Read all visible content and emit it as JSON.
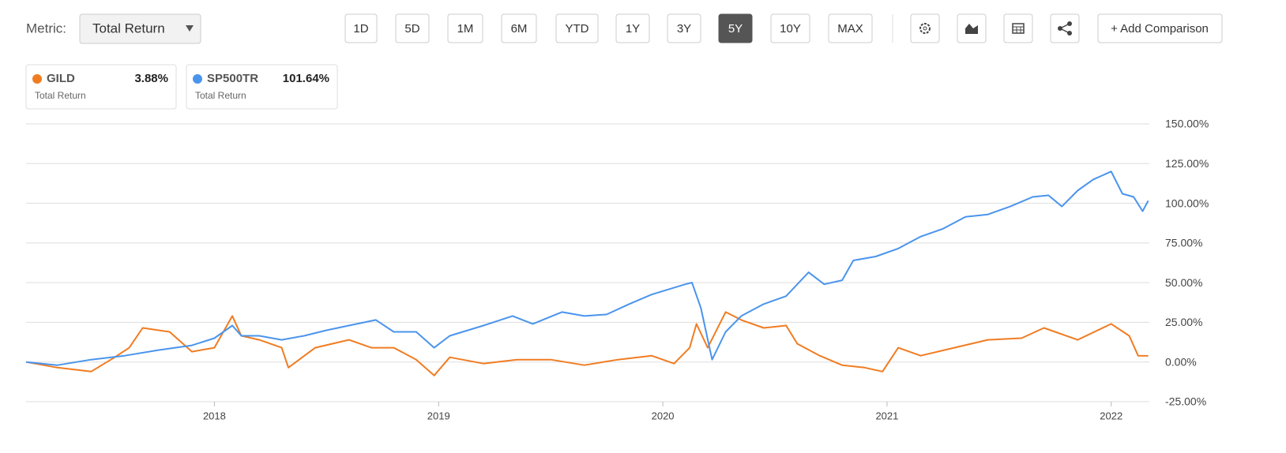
{
  "toolbar": {
    "metric_label": "Metric:",
    "metric_value": "Total Return",
    "ranges": [
      "1D",
      "5D",
      "1M",
      "6M",
      "YTD",
      "1Y",
      "3Y",
      "5Y",
      "10Y",
      "MAX"
    ],
    "active_range": "5Y",
    "add_comparison": "+ Add Comparison"
  },
  "chart_data": {
    "type": "line",
    "xlim": [
      2017.16,
      2022.17
    ],
    "xticks": [
      2018,
      2019,
      2020,
      2021,
      2022
    ],
    "ylim": [
      -25,
      150
    ],
    "yticks": [
      {
        "value": -25,
        "label": "-25.00%"
      },
      {
        "value": 0,
        "label": "0.00%"
      },
      {
        "value": 25,
        "label": "25.00%"
      },
      {
        "value": 50,
        "label": "50.00%"
      },
      {
        "value": 75,
        "label": "75.00%"
      },
      {
        "value": 100,
        "label": "100.00%"
      },
      {
        "value": 125,
        "label": "125.00%"
      },
      {
        "value": 150,
        "label": "150.00%"
      }
    ],
    "grid": true,
    "series": [
      {
        "name": "GILD",
        "color": "#f07c22",
        "subtitle": "Total Return",
        "last": {
          "value": 3.88,
          "label": "3.88%"
        },
        "x": [
          2017.16,
          2017.3,
          2017.45,
          2017.55,
          2017.62,
          2017.68,
          2017.8,
          2017.9,
          2018.0,
          2018.08,
          2018.12,
          2018.2,
          2018.3,
          2018.33,
          2018.45,
          2018.6,
          2018.7,
          2018.8,
          2018.9,
          2018.98,
          2019.05,
          2019.2,
          2019.35,
          2019.5,
          2019.65,
          2019.8,
          2019.95,
          2020.05,
          2020.12,
          2020.15,
          2020.2,
          2020.28,
          2020.35,
          2020.45,
          2020.55,
          2020.6,
          2020.7,
          2020.8,
          2020.9,
          2020.98,
          2021.05,
          2021.15,
          2021.3,
          2021.45,
          2021.6,
          2021.7,
          2021.85,
          2022.0,
          2022.08,
          2022.12,
          2022.165
        ],
        "values": [
          0,
          -3.5,
          -6,
          2.5,
          9,
          21.5,
          19,
          6.5,
          9,
          29,
          16.5,
          14,
          9,
          -3.5,
          9,
          14,
          9,
          9,
          1.5,
          -8.5,
          3,
          -1,
          1.5,
          1.5,
          -2,
          1.5,
          4,
          -1,
          9,
          24,
          9,
          31.5,
          26.5,
          21.5,
          23,
          11.5,
          4,
          -2,
          -3.5,
          -6,
          9,
          4,
          9,
          14,
          15,
          21.5,
          14,
          24,
          16.5,
          4,
          3.88
        ]
      },
      {
        "name": "SP500TR",
        "color": "#4a94ec",
        "subtitle": "Total Return",
        "last": {
          "value": 101.64,
          "label": "101.64%"
        },
        "x": [
          2017.16,
          2017.3,
          2017.45,
          2017.6,
          2017.75,
          2017.9,
          2018.0,
          2018.08,
          2018.12,
          2018.2,
          2018.3,
          2018.4,
          2018.5,
          2018.6,
          2018.72,
          2018.8,
          2018.9,
          2018.98,
          2019.05,
          2019.2,
          2019.33,
          2019.42,
          2019.55,
          2019.65,
          2019.75,
          2019.85,
          2019.95,
          2020.1,
          2020.13,
          2020.17,
          2020.22,
          2020.28,
          2020.35,
          2020.45,
          2020.55,
          2020.65,
          2020.72,
          2020.8,
          2020.85,
          2020.95,
          2021.05,
          2021.15,
          2021.25,
          2021.35,
          2021.45,
          2021.55,
          2021.65,
          2021.72,
          2021.78,
          2021.85,
          2021.92,
          2022.0,
          2022.05,
          2022.1,
          2022.14,
          2022.165
        ],
        "values": [
          0,
          -2,
          1.5,
          4,
          7.5,
          10.5,
          15,
          23,
          16.5,
          16.5,
          14,
          16.5,
          20,
          23,
          26.5,
          19,
          19,
          9,
          16.5,
          23,
          29,
          24,
          31.5,
          29,
          30,
          36.5,
          42.5,
          49,
          50,
          34,
          1.5,
          19,
          29,
          36.5,
          41.5,
          56.5,
          49,
          51.5,
          64,
          66.5,
          71.5,
          79,
          84,
          91.5,
          93,
          98,
          104,
          105,
          98,
          108,
          115,
          120,
          106,
          104,
          95,
          101.64
        ]
      }
    ]
  }
}
